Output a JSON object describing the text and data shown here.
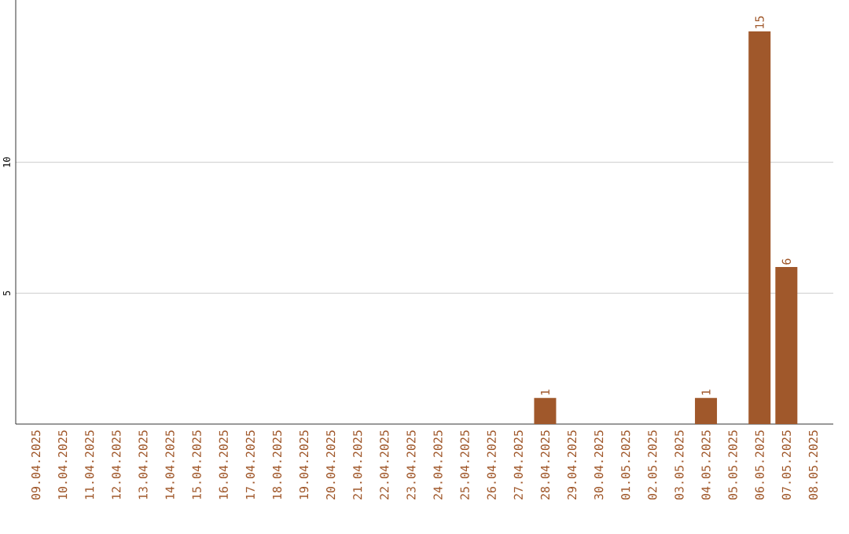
{
  "chart_data": {
    "type": "bar",
    "categories": [
      "09.04.2025",
      "10.04.2025",
      "11.04.2025",
      "12.04.2025",
      "13.04.2025",
      "14.04.2025",
      "15.04.2025",
      "16.04.2025",
      "17.04.2025",
      "18.04.2025",
      "19.04.2025",
      "20.04.2025",
      "21.04.2025",
      "22.04.2025",
      "23.04.2025",
      "24.04.2025",
      "25.04.2025",
      "26.04.2025",
      "27.04.2025",
      "28.04.2025",
      "29.04.2025",
      "30.04.2025",
      "01.05.2025",
      "02.05.2025",
      "03.05.2025",
      "04.05.2025",
      "05.05.2025",
      "06.05.2025",
      "07.05.2025",
      "08.05.2025"
    ],
    "values": [
      0,
      0,
      0,
      0,
      0,
      0,
      0,
      0,
      0,
      0,
      0,
      0,
      0,
      0,
      0,
      0,
      0,
      0,
      0,
      1,
      0,
      0,
      0,
      0,
      0,
      1,
      0,
      15,
      6,
      0
    ],
    "value_labels": [
      null,
      null,
      null,
      null,
      null,
      null,
      null,
      null,
      null,
      null,
      null,
      null,
      null,
      null,
      null,
      null,
      null,
      null,
      null,
      "1",
      null,
      null,
      null,
      null,
      null,
      "1",
      null,
      "15",
      "6",
      null
    ],
    "color": "#a0582b",
    "ylim": [
      0,
      16.2
    ],
    "yticks": [
      5,
      10
    ],
    "grid": "y"
  }
}
